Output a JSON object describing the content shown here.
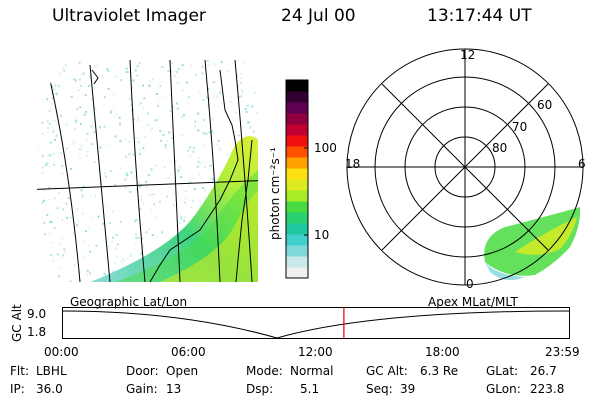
{
  "header": {
    "title": "Ultraviolet Imager",
    "date": "24 Jul 00",
    "time": "13:17:44 UT"
  },
  "colorbar": {
    "unit_label": "photon cm⁻²s⁻¹",
    "ticks": [
      "100",
      "10"
    ],
    "colors": [
      "#f0f0f0",
      "#c8e8ea",
      "#7fd7d7",
      "#3fcfcf",
      "#20c8a0",
      "#28d070",
      "#48dc40",
      "#a8ec28",
      "#dcec20",
      "#ffe010",
      "#ffa000",
      "#ff5000",
      "#f01010",
      "#c00030",
      "#900040",
      "#600050",
      "#300030",
      "#000000"
    ]
  },
  "polar_plot": {
    "mlt_labels": [
      "12",
      "18",
      "6",
      "0"
    ],
    "lat_labels": [
      "60",
      "70",
      "80"
    ]
  },
  "timeline": {
    "left_caption": "Geographic Lat/Lon",
    "right_caption": "Apex MLat/MLT",
    "ylabel": "GC Alt",
    "yticks": [
      "9.0",
      "1.8"
    ],
    "xticks": [
      "00:00",
      "06:00",
      "12:00",
      "18:00",
      "23:59"
    ],
    "marker_color": "#e00000",
    "marker_fraction": 0.555
  },
  "info": {
    "row1": [
      {
        "label": "Flt:",
        "value": "LBHL"
      },
      {
        "label": "Door:",
        "value": "Open"
      },
      {
        "label": "Mode:",
        "value": "Normal"
      },
      {
        "label": "GC Alt:",
        "value": "6.3 Re"
      },
      {
        "label": "GLat:",
        "value": "26.7"
      }
    ],
    "row2": [
      {
        "label": "IP:",
        "value": "36.0"
      },
      {
        "label": "Gain:",
        "value": "13"
      },
      {
        "label": "Dsp:",
        "value": "5.1"
      },
      {
        "label": "Seq:",
        "value": "39"
      },
      {
        "label": "GLon:",
        "value": "223.8"
      }
    ]
  }
}
